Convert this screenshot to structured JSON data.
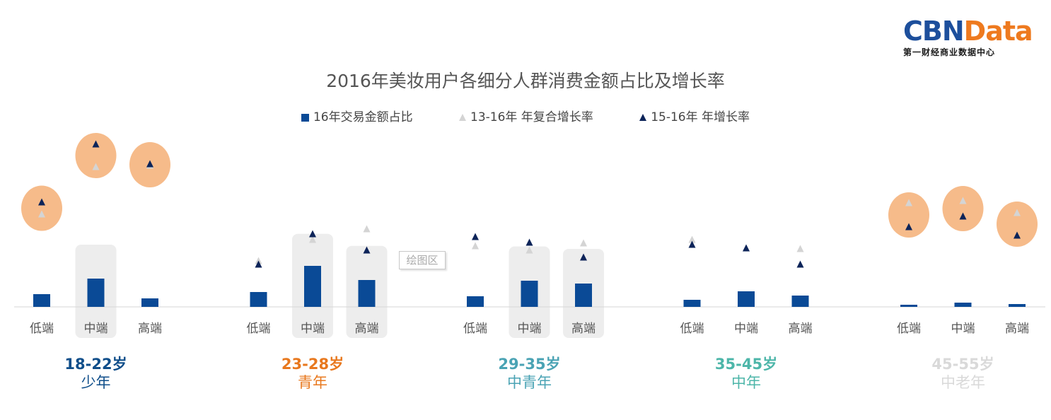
{
  "logo": {
    "part1": "CBN",
    "part2": "Data",
    "subtitle": "第一财经商业数据中心"
  },
  "plot_area_label": "绘图区",
  "colors": {
    "bar": "#0a4a96",
    "tri_13_16": "#d4d4d4",
    "tri_15_16": "#0d2459",
    "bubble": "#f6bb8a",
    "highlight_box": "#ededed"
  },
  "chart_data": {
    "type": "bar",
    "title": "2016年美妆用户各细分人群消费金额占比及增长率",
    "legend_placement": "top",
    "grid": false,
    "tiers": [
      "低端",
      "中端",
      "高端"
    ],
    "groups": [
      {
        "age": "18-22岁",
        "label": "少年",
        "color": "#0f4e8a"
      },
      {
        "age": "23-28岁",
        "label": "青年",
        "color": "#e8781e"
      },
      {
        "age": "29-35岁",
        "label": "中青年",
        "color": "#4aa3b4"
      },
      {
        "age": "35-45岁",
        "label": "中年",
        "color": "#4db6a9"
      },
      {
        "age": "45-55岁",
        "label": "中老年",
        "color": "#d9d9d9"
      }
    ],
    "series": [
      {
        "name": "16年交易金额占比",
        "kind": "bar",
        "values": [
          18,
          40,
          12,
          21,
          58,
          38,
          15,
          37,
          33,
          10,
          22,
          16,
          3,
          6,
          4
        ]
      },
      {
        "name": "13-16年 年复合增长率",
        "kind": "marker",
        "values": [
          131,
          198,
          200,
          65,
          95,
          110,
          86,
          80,
          90,
          95,
          83,
          82,
          147,
          150,
          133
        ]
      },
      {
        "name": "15-16年 年增长率",
        "kind": "marker",
        "values": [
          148,
          230,
          202,
          60,
          103,
          80,
          99,
          91,
          70,
          88,
          83,
          60,
          113,
          128,
          101
        ]
      }
    ],
    "highlighted_boxes": [
      1,
      4,
      5,
      7,
      8
    ],
    "circled_points": [
      0,
      1,
      2,
      12,
      13,
      14
    ]
  }
}
